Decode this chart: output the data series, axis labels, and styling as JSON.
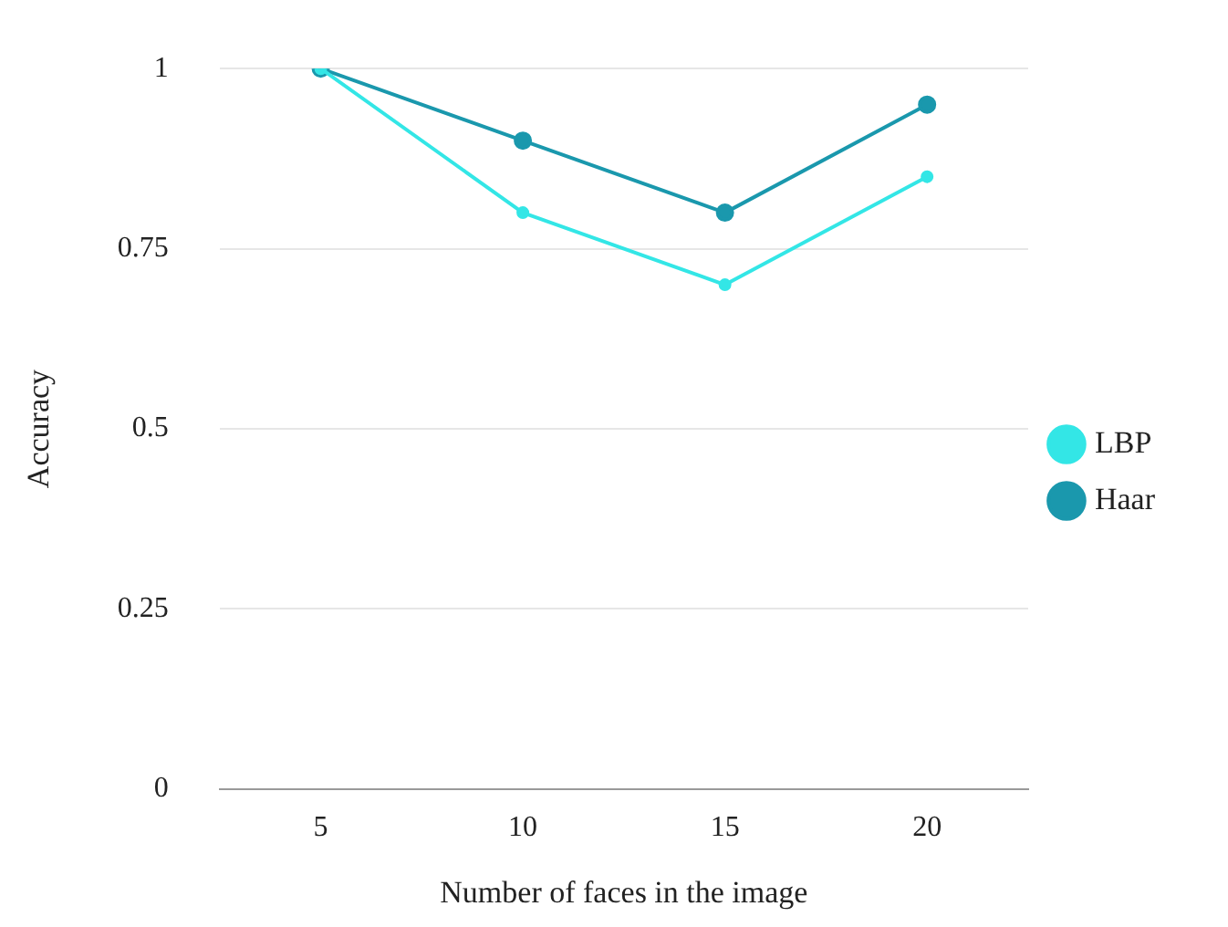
{
  "chart_data": {
    "type": "line",
    "xlabel": "Number of faces in the image",
    "ylabel": "Accuracy",
    "categories": [
      "5",
      "10",
      "15",
      "20"
    ],
    "series": [
      {
        "name": "LBP",
        "color": "#33e6e6",
        "values": [
          1,
          0.8,
          0.7,
          0.85
        ]
      },
      {
        "name": "Haar",
        "color": "#1a98ad",
        "values": [
          1,
          0.9,
          0.8,
          0.95
        ]
      }
    ],
    "ylim": [
      0,
      1
    ],
    "yticks": [
      0,
      0.25,
      0.5,
      0.75,
      1
    ],
    "grid": "y",
    "legend": "right",
    "marker": "circle",
    "line_style": "solid"
  }
}
